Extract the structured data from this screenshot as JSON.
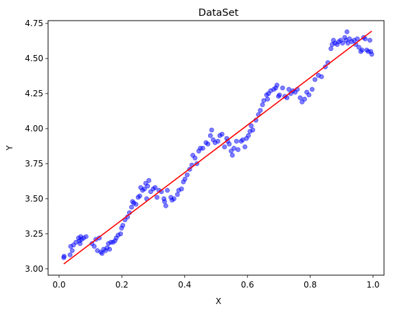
{
  "chart_data": {
    "type": "scatter",
    "title": "DataSet",
    "xlabel": "X",
    "ylabel": "Y",
    "xlim": [
      -0.035,
      1.035
    ],
    "ylim": [
      2.955,
      4.77
    ],
    "xticks": [
      0.0,
      0.2,
      0.4,
      0.6,
      0.8,
      1.0
    ],
    "xtick_labels": [
      "0.0",
      "0.2",
      "0.4",
      "0.6",
      "0.8",
      "1.0"
    ],
    "yticks": [
      3.0,
      3.25,
      3.5,
      3.75,
      4.0,
      4.25,
      4.5,
      4.75
    ],
    "ytick_labels": [
      "3.00",
      "3.25",
      "3.50",
      "3.75",
      "4.00",
      "4.25",
      "4.50",
      "4.75"
    ],
    "grid": false,
    "legend": "none",
    "colors": {
      "points": "#0000ff",
      "line": "#ff0000"
    },
    "series": [
      {
        "type": "scatter",
        "points": [
          [
            0.015,
            3.08
          ],
          [
            0.016,
            3.09
          ],
          [
            0.035,
            3.1
          ],
          [
            0.037,
            3.16
          ],
          [
            0.042,
            3.13
          ],
          [
            0.046,
            3.17
          ],
          [
            0.054,
            3.19
          ],
          [
            0.062,
            3.22
          ],
          [
            0.065,
            3.2
          ],
          [
            0.067,
            3.18
          ],
          [
            0.069,
            3.23
          ],
          [
            0.072,
            3.21
          ],
          [
            0.078,
            3.22
          ],
          [
            0.086,
            3.23
          ],
          [
            0.105,
            3.18
          ],
          [
            0.112,
            3.16
          ],
          [
            0.117,
            3.21
          ],
          [
            0.122,
            3.13
          ],
          [
            0.128,
            3.22
          ],
          [
            0.133,
            3.12
          ],
          [
            0.137,
            3.11
          ],
          [
            0.142,
            3.14
          ],
          [
            0.148,
            3.13
          ],
          [
            0.153,
            3.15
          ],
          [
            0.157,
            3.18
          ],
          [
            0.161,
            3.14
          ],
          [
            0.165,
            3.19
          ],
          [
            0.172,
            3.19
          ],
          [
            0.178,
            3.2
          ],
          [
            0.182,
            3.22
          ],
          [
            0.188,
            3.24
          ],
          [
            0.196,
            3.25
          ],
          [
            0.199,
            3.29
          ],
          [
            0.203,
            3.31
          ],
          [
            0.21,
            3.35
          ],
          [
            0.218,
            3.37
          ],
          [
            0.224,
            3.4
          ],
          [
            0.231,
            3.44
          ],
          [
            0.234,
            3.48
          ],
          [
            0.238,
            3.47
          ],
          [
            0.245,
            3.46
          ],
          [
            0.252,
            3.51
          ],
          [
            0.257,
            3.52
          ],
          [
            0.26,
            3.58
          ],
          [
            0.266,
            3.56
          ],
          [
            0.272,
            3.57
          ],
          [
            0.276,
            3.61
          ],
          [
            0.279,
            3.5
          ],
          [
            0.282,
            3.59
          ],
          [
            0.286,
            3.63
          ],
          [
            0.292,
            3.55
          ],
          [
            0.3,
            3.57
          ],
          [
            0.306,
            3.58
          ],
          [
            0.312,
            3.51
          ],
          [
            0.318,
            3.56
          ],
          [
            0.326,
            3.55
          ],
          [
            0.334,
            3.5
          ],
          [
            0.336,
            3.48
          ],
          [
            0.34,
            3.45
          ],
          [
            0.345,
            3.56
          ],
          [
            0.356,
            3.51
          ],
          [
            0.36,
            3.49
          ],
          [
            0.366,
            3.5
          ],
          [
            0.377,
            3.53
          ],
          [
            0.381,
            3.56
          ],
          [
            0.39,
            3.57
          ],
          [
            0.396,
            3.62
          ],
          [
            0.401,
            3.64
          ],
          [
            0.408,
            3.67
          ],
          [
            0.416,
            3.71
          ],
          [
            0.423,
            3.74
          ],
          [
            0.426,
            3.81
          ],
          [
            0.433,
            3.79
          ],
          [
            0.439,
            3.75
          ],
          [
            0.445,
            3.84
          ],
          [
            0.45,
            3.86
          ],
          [
            0.458,
            3.86
          ],
          [
            0.468,
            3.9
          ],
          [
            0.474,
            3.89
          ],
          [
            0.482,
            3.95
          ],
          [
            0.486,
            3.99
          ],
          [
            0.491,
            3.92
          ],
          [
            0.497,
            3.9
          ],
          [
            0.506,
            3.91
          ],
          [
            0.512,
            3.95
          ],
          [
            0.519,
            3.96
          ],
          [
            0.527,
            3.87
          ],
          [
            0.534,
            3.93
          ],
          [
            0.537,
            3.91
          ],
          [
            0.542,
            3.89
          ],
          [
            0.548,
            3.84
          ],
          [
            0.552,
            3.81
          ],
          [
            0.557,
            3.86
          ],
          [
            0.565,
            3.91
          ],
          [
            0.57,
            3.85
          ],
          [
            0.58,
            3.91
          ],
          [
            0.585,
            3.92
          ],
          [
            0.592,
            3.87
          ],
          [
            0.597,
            3.93
          ],
          [
            0.603,
            3.95
          ],
          [
            0.608,
            3.98
          ],
          [
            0.612,
            4.02
          ],
          [
            0.617,
            3.99
          ],
          [
            0.627,
            4.06
          ],
          [
            0.635,
            4.1
          ],
          [
            0.641,
            4.13
          ],
          [
            0.648,
            4.17
          ],
          [
            0.652,
            4.2
          ],
          [
            0.661,
            4.24
          ],
          [
            0.664,
            4.21
          ],
          [
            0.667,
            4.25
          ],
          [
            0.674,
            4.27
          ],
          [
            0.684,
            4.28
          ],
          [
            0.69,
            4.29
          ],
          [
            0.694,
            4.31
          ],
          [
            0.699,
            4.23
          ],
          [
            0.702,
            4.24
          ],
          [
            0.712,
            4.29
          ],
          [
            0.719,
            4.23
          ],
          [
            0.726,
            4.22
          ],
          [
            0.732,
            4.28
          ],
          [
            0.738,
            4.25
          ],
          [
            0.745,
            4.27
          ],
          [
            0.752,
            4.26
          ],
          [
            0.759,
            4.28
          ],
          [
            0.768,
            4.22
          ],
          [
            0.774,
            4.19
          ],
          [
            0.782,
            4.21
          ],
          [
            0.789,
            4.26
          ],
          [
            0.796,
            4.24
          ],
          [
            0.806,
            4.28
          ],
          [
            0.815,
            4.35
          ],
          [
            0.826,
            4.38
          ],
          [
            0.836,
            4.37
          ],
          [
            0.848,
            4.44
          ],
          [
            0.856,
            4.47
          ],
          [
            0.866,
            4.57
          ],
          [
            0.87,
            4.6
          ],
          [
            0.874,
            4.63
          ],
          [
            0.879,
            4.61
          ],
          [
            0.886,
            4.6
          ],
          [
            0.891,
            4.62
          ],
          [
            0.897,
            4.63
          ],
          [
            0.903,
            4.61
          ],
          [
            0.91,
            4.65
          ],
          [
            0.914,
            4.63
          ],
          [
            0.917,
            4.69
          ],
          [
            0.92,
            4.61
          ],
          [
            0.925,
            4.64
          ],
          [
            0.932,
            4.62
          ],
          [
            0.94,
            4.63
          ],
          [
            0.945,
            4.6
          ],
          [
            0.95,
            4.64
          ],
          [
            0.955,
            4.58
          ],
          [
            0.961,
            4.55
          ],
          [
            0.965,
            4.56
          ],
          [
            0.97,
            4.65
          ],
          [
            0.975,
            4.64
          ],
          [
            0.98,
            4.56
          ],
          [
            0.985,
            4.55
          ],
          [
            0.99,
            4.63
          ],
          [
            0.993,
            4.55
          ],
          [
            0.996,
            4.53
          ]
        ]
      },
      {
        "type": "line",
        "x": [
          0.015,
          0.996
        ],
        "y": [
          3.035,
          4.695
        ]
      }
    ]
  }
}
